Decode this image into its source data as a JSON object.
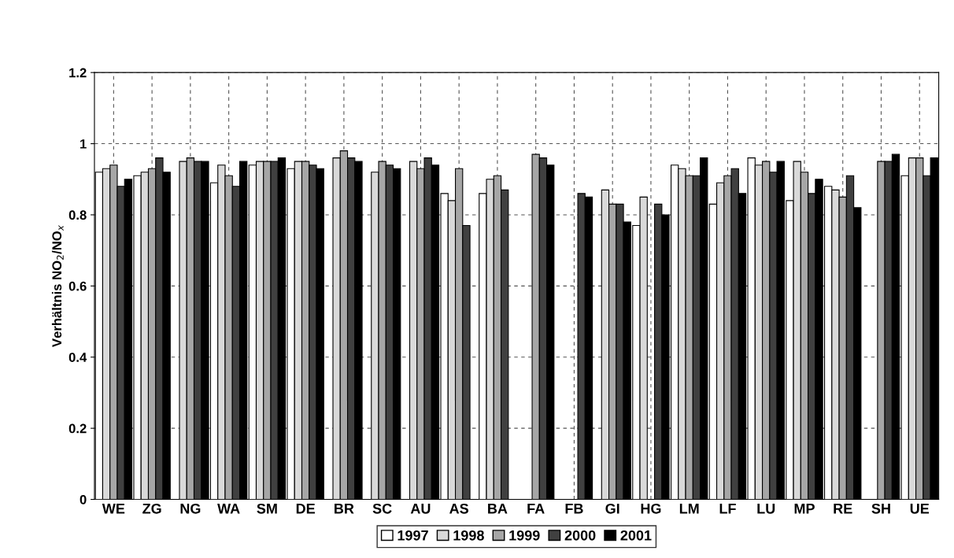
{
  "chart_data": {
    "type": "bar",
    "ylabel": "Verhältnis NO$_{2}$/NO$_{x}$",
    "categories": [
      "WE",
      "ZG",
      "NG",
      "WA",
      "SM",
      "DE",
      "BR",
      "SC",
      "AU",
      "AS",
      "BA",
      "FA",
      "FB",
      "GI",
      "HG",
      "LM",
      "LF",
      "LU",
      "MP",
      "RE",
      "SH",
      "UE"
    ],
    "series": [
      {
        "name": "1997",
        "color": "#ffffff",
        "values": [
          0.92,
          0.91,
          null,
          0.89,
          0.94,
          0.93,
          null,
          null,
          null,
          0.86,
          0.86,
          null,
          null,
          null,
          0.77,
          0.94,
          0.83,
          0.96,
          0.84,
          0.88,
          null,
          0.91
        ]
      },
      {
        "name": "1998",
        "color": "#d9d9d9",
        "values": [
          0.93,
          0.92,
          0.95,
          0.94,
          0.95,
          0.95,
          0.96,
          0.92,
          0.95,
          0.84,
          0.9,
          null,
          null,
          0.87,
          0.85,
          0.93,
          0.89,
          0.94,
          0.95,
          0.87,
          null,
          0.96
        ]
      },
      {
        "name": "1999",
        "color": "#a6a6a6",
        "values": [
          0.94,
          0.93,
          0.96,
          0.91,
          0.95,
          0.95,
          0.98,
          0.95,
          0.93,
          0.93,
          0.91,
          0.97,
          null,
          0.83,
          null,
          0.91,
          0.91,
          0.95,
          0.92,
          0.85,
          0.95,
          0.96
        ]
      },
      {
        "name": "2000",
        "color": "#404040",
        "values": [
          0.88,
          0.96,
          0.95,
          0.88,
          0.95,
          0.94,
          0.96,
          0.94,
          0.96,
          0.77,
          0.87,
          0.96,
          0.86,
          0.83,
          0.83,
          0.91,
          0.93,
          0.92,
          0.86,
          0.91,
          0.95,
          0.91
        ]
      },
      {
        "name": "2001",
        "color": "#000000",
        "values": [
          0.9,
          0.92,
          0.95,
          0.95,
          0.96,
          0.93,
          0.95,
          0.93,
          0.94,
          null,
          null,
          0.94,
          0.85,
          0.78,
          0.8,
          0.96,
          0.86,
          0.95,
          0.9,
          0.82,
          0.97,
          0.96
        ]
      }
    ],
    "ylim": [
      0,
      1.2
    ],
    "yticks": [
      0,
      0.2,
      0.4,
      0.6,
      0.8,
      1,
      1.2
    ],
    "grid": true,
    "legend": "bottom"
  }
}
